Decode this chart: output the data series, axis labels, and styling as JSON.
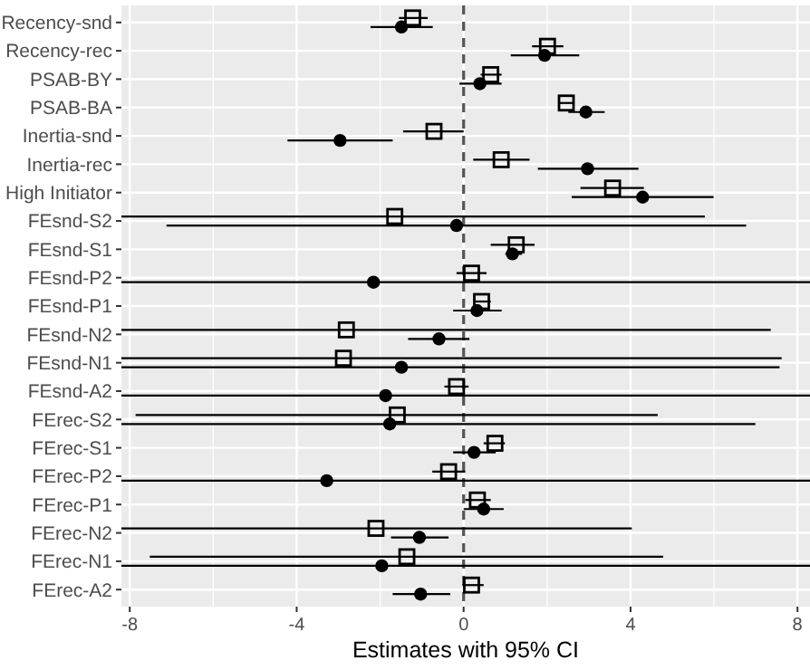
{
  "chart_data": {
    "type": "scatter",
    "orientation": "horizontal",
    "xlabel": "Estimates with 95% CI",
    "categories": [
      "Recency-snd",
      "Recency-rec",
      "PSAB-BY",
      "PSAB-BA",
      "Inertia-snd",
      "Inertia-rec",
      "High Initiator",
      "FEsnd-S2",
      "FEsnd-S1",
      "FEsnd-P2",
      "FEsnd-P1",
      "FEsnd-N2",
      "FEsnd-N1",
      "FEsnd-A2",
      "FErec-S2",
      "FErec-S1",
      "FErec-P2",
      "FErec-P1",
      "FErec-N2",
      "FErec-N1",
      "FErec-A2"
    ],
    "xlim": [
      -8.2,
      8.3
    ],
    "xticks": [
      -8,
      -4,
      0,
      4,
      8
    ],
    "grid": true,
    "ref_lines": [
      {
        "axis": "x",
        "value": 0,
        "line_style": "dashed",
        "color": "#555555"
      }
    ],
    "series": [
      {
        "color": "#000000",
        "marker": "circle",
        "values": [
          -1.49,
          1.94,
          0.39,
          2.93,
          -2.96,
          2.97,
          4.29,
          -0.17,
          1.17,
          -2.16,
          0.32,
          -0.59,
          -1.49,
          -1.87,
          -1.77,
          0.25,
          -3.28,
          0.48,
          -1.06,
          -1.96,
          -1.03
        ],
        "errors": [
          [
            -2.23,
            -0.74
          ],
          [
            1.13,
            2.77
          ],
          [
            -0.1,
            0.91
          ],
          [
            2.51,
            3.38
          ],
          [
            -4.22,
            -1.7
          ],
          [
            1.78,
            4.19
          ],
          [
            2.59,
            5.99
          ],
          [
            -7.12,
            6.77
          ],
          [
            1.0,
            1.4
          ],
          [
            -8.2,
            8.3
          ],
          [
            -0.25,
            0.91
          ],
          [
            -1.33,
            0.14
          ],
          [
            -8.2,
            7.57
          ],
          [
            -8.2,
            8.3
          ],
          [
            -8.2,
            6.99
          ],
          [
            -0.25,
            0.77
          ],
          [
            -8.2,
            8.3
          ],
          [
            0,
            0.96
          ],
          [
            -1.74,
            -0.36
          ],
          [
            -8.2,
            8.3
          ],
          [
            -1.7,
            -0.32
          ]
        ]
      },
      {
        "color": "#000000",
        "marker": "square",
        "values": [
          -1.22,
          2.01,
          0.65,
          2.46,
          -0.71,
          0.9,
          3.57,
          -1.65,
          1.26,
          0.19,
          0.43,
          -2.81,
          -2.88,
          -0.17,
          -1.59,
          0.75,
          -0.36,
          0.33,
          -2.1,
          -1.36,
          0.19
        ],
        "errors": [
          [
            -1.55,
            -0.86
          ],
          [
            1.64,
            2.39
          ],
          [
            0.41,
            0.91
          ],
          [
            2.29,
            2.65
          ],
          [
            -1.45,
            0
          ],
          [
            0.23,
            1.58
          ],
          [
            2.8,
            4.32
          ],
          [
            -8.2,
            5.78
          ],
          [
            0.65,
            1.7
          ],
          [
            -0.17,
            0.55
          ],
          [
            0.26,
            0.65
          ],
          [
            -8.2,
            7.36
          ],
          [
            -8.2,
            7.62
          ],
          [
            -0.46,
            0.12
          ],
          [
            -7.86,
            4.65
          ],
          [
            0.48,
            0.99
          ],
          [
            -0.75,
            0.04
          ],
          [
            0.04,
            0.65
          ],
          [
            -8.2,
            4.03
          ],
          [
            -7.52,
            4.78
          ],
          [
            -0.03,
            0.48
          ]
        ]
      }
    ]
  }
}
